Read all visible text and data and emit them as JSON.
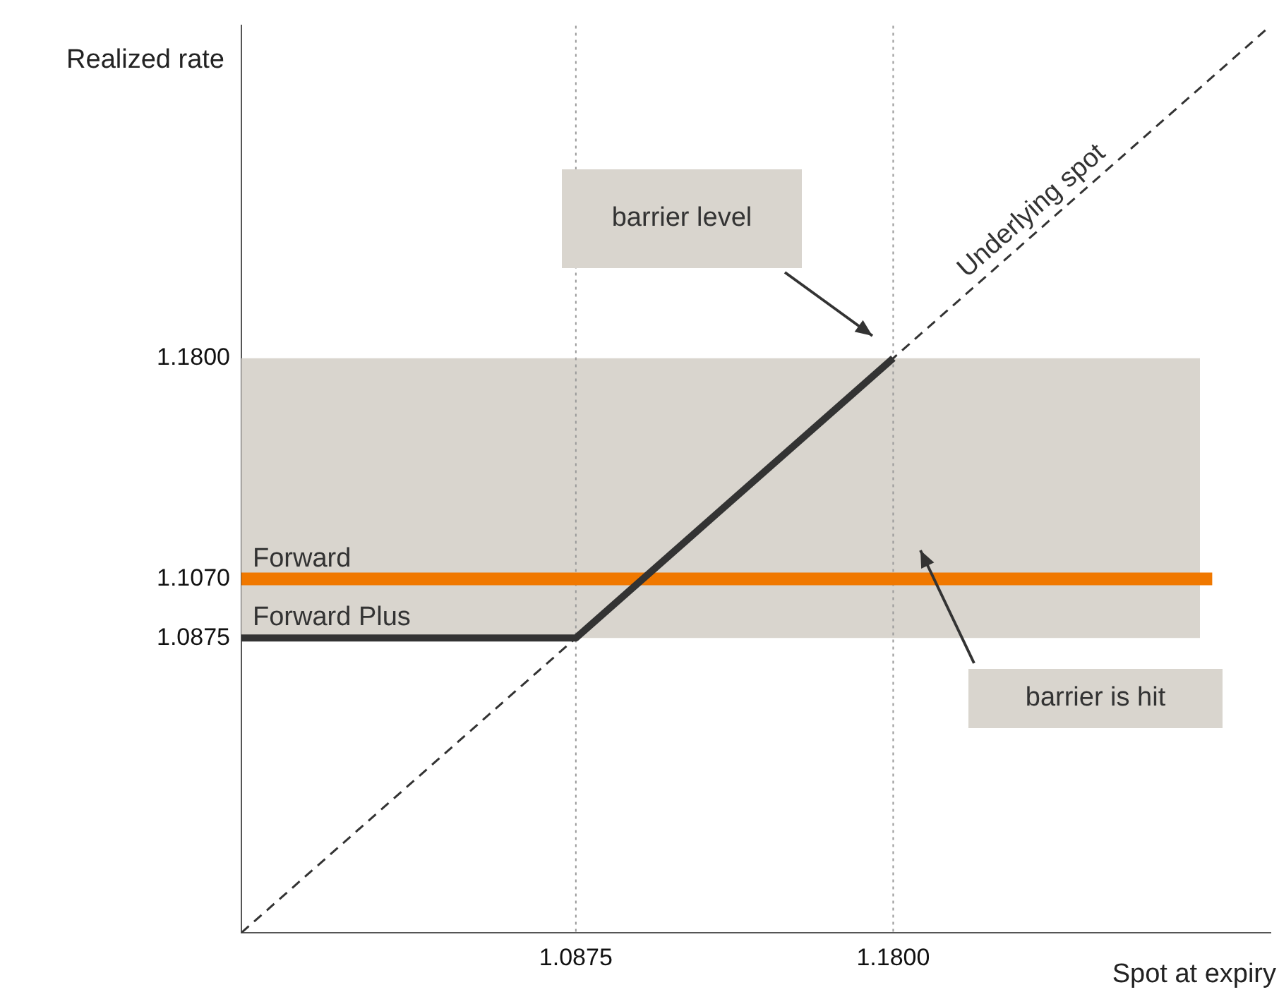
{
  "chart_data": {
    "type": "line",
    "xlabel": "Spot at expiry",
    "ylabel": "Realized rate",
    "xlim": [
      0.99,
      1.29
    ],
    "ylim": [
      0.99,
      1.29
    ],
    "xticks": [
      1.0875,
      {
        "value": 1.18,
        "label": "1.1800"
      }
    ],
    "yticks": [
      1.0875,
      {
        "value": 1.107,
        "label": "1.1070"
      },
      {
        "value": 1.18,
        "label": "1.1800"
      }
    ],
    "grid": false,
    "legend": false,
    "marker": "none",
    "series": [
      {
        "name": "Underlying spot",
        "x": [
          0.99,
          1.29
        ],
        "values": [
          0.99,
          1.29
        ],
        "color": "#333333",
        "line_style": "dashed"
      },
      {
        "name": "Forward",
        "x": [
          0.99,
          1.273
        ],
        "values": [
          1.107,
          1.107
        ],
        "color": "#f07800",
        "line_style": "solid"
      },
      {
        "name": "Forward Plus",
        "x": [
          0.99,
          1.0875,
          1.18
        ],
        "values": [
          1.0875,
          1.0875,
          1.18
        ],
        "color": "#333333",
        "line_style": "solid"
      }
    ],
    "bands": [
      {
        "axis": "y",
        "from": 1.0875,
        "to": 1.18,
        "color": "#d9d5ce"
      }
    ],
    "ref_lines": [
      {
        "axis": "x",
        "value": 1.0875,
        "color": "#999999",
        "line_style": "dotted"
      },
      {
        "axis": "x",
        "value": 1.18,
        "color": "#999999",
        "line_style": "dotted"
      }
    ],
    "annotations": [
      "barrier level",
      "barrier is hit"
    ]
  }
}
